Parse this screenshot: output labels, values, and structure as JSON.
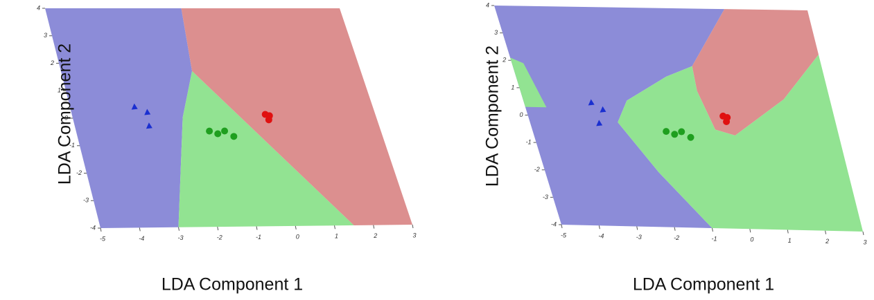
{
  "chart_data": [
    {
      "type": "scatter",
      "xlabel": "LDA Component 1",
      "ylabel": "LDA Component 2",
      "xlim": [
        -5,
        3
      ],
      "ylim": [
        -4,
        4
      ],
      "xticks": [
        -5,
        -4,
        -3,
        -2,
        -1,
        0,
        1,
        2,
        3
      ],
      "yticks": [
        -4,
        -3,
        -2,
        -1,
        0,
        1,
        2,
        3,
        4
      ],
      "regions": [
        {
          "color": "#8c8cd8",
          "x": [
            -5,
            -3,
            -2.1,
            -1.5,
            -1.3,
            -5
          ],
          "y": [
            -4,
            -4,
            0,
            1.7,
            4,
            4
          ]
        },
        {
          "color": "#92e392",
          "x": [
            -3,
            1.5,
            -1.5,
            -2.1
          ],
          "y": [
            -4,
            -4,
            1.7,
            0
          ]
        },
        {
          "color": "#dc8f8f",
          "x": [
            -1.3,
            3,
            3,
            1.5,
            -1.5
          ],
          "y": [
            4,
            4,
            -4,
            -4,
            1.7
          ]
        }
      ],
      "series": [
        {
          "color": "#1a2fd0",
          "marker": "triangle",
          "x": [
            -3.3,
            -3.0,
            -3.05
          ],
          "y": [
            0.4,
            0.2,
            -0.3
          ]
        },
        {
          "color": "#1f9f1f",
          "marker": "circle",
          "x": [
            -1.5,
            -1.3,
            -1.1,
            -0.9
          ],
          "y": [
            -0.5,
            -0.6,
            -0.5,
            -0.7
          ]
        },
        {
          "color": "#e01010",
          "marker": "circle",
          "x": [
            0.1,
            0.15,
            0.2
          ],
          "y": [
            0.1,
            -0.1,
            0.05
          ]
        }
      ]
    },
    {
      "type": "scatter",
      "xlabel": "LDA Component 1",
      "ylabel": "LDA Component 2",
      "xlim": [
        -5,
        3
      ],
      "ylim": [
        -4,
        4
      ],
      "xticks": [
        -5,
        -4,
        -3,
        -2,
        -1,
        0,
        1,
        2,
        3
      ],
      "yticks": [
        -4,
        -3,
        -2,
        -1,
        0,
        1,
        2,
        3,
        4
      ],
      "regions": [
        {
          "color": "#8c8cd8",
          "x": [
            -5,
            -1.0,
            -2.0,
            -2.7,
            -2.3,
            -1.1,
            -0.35,
            0.88,
            -5
          ],
          "y": [
            -4,
            -4,
            -2,
            -0.2,
            0.6,
            1.5,
            1.9,
            4,
            4
          ]
        },
        {
          "color": "#dc8f8f",
          "x": [
            0.88,
            3,
            3,
            1.8,
            0.28,
            -0.2,
            -0.4,
            -0.35
          ],
          "y": [
            4,
            4,
            2.4,
            0.75,
            -0.6,
            -0.4,
            1.0,
            1.9
          ]
        },
        {
          "color": "#92e392",
          "x": [
            -1.0,
            3,
            3,
            1.8,
            0.28,
            -0.2,
            -0.4,
            -0.35,
            -1.1,
            -2.3,
            -2.7,
            -2.0
          ],
          "y": [
            -4,
            -4,
            2.4,
            0.75,
            -0.6,
            -0.4,
            1.0,
            1.9,
            1.5,
            0.6,
            -0.2,
            -2
          ]
        },
        {
          "color": "#92e392",
          "x": [
            -5,
            -4.7,
            -4.45,
            -5
          ],
          "y": [
            2.1,
            1.9,
            0.3,
            0.3
          ]
        }
      ],
      "series": [
        {
          "color": "#1a2fd0",
          "marker": "triangle",
          "x": [
            -3.25,
            -3.0,
            -3.2
          ],
          "y": [
            0.5,
            0.25,
            -0.25
          ]
        },
        {
          "color": "#1f9f1f",
          "marker": "circle",
          "x": [
            -1.5,
            -1.3,
            -1.1,
            -0.9
          ],
          "y": [
            -0.5,
            -0.6,
            -0.5,
            -0.7
          ]
        },
        {
          "color": "#e01010",
          "marker": "circle",
          "x": [
            0.1,
            0.15,
            0.2
          ],
          "y": [
            0.1,
            -0.1,
            0.05
          ]
        }
      ]
    }
  ]
}
